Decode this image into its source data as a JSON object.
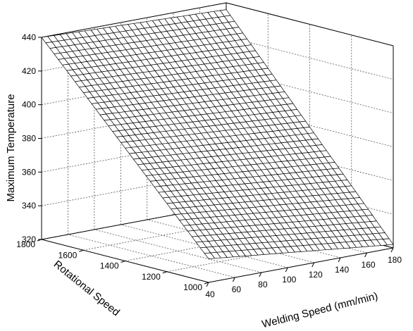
{
  "chart_data": {
    "type": "surface",
    "title": "",
    "xlabel": "Welding Speed (mm/min)",
    "ylabel": "Rotational Speed",
    "zlabel": "Maximum Temperature",
    "xlim": [
      40,
      180
    ],
    "ylim": [
      1000,
      1800
    ],
    "zlim": [
      320,
      440
    ],
    "x_ticks": [
      "40",
      "60",
      "80",
      "100",
      "120",
      "140",
      "160",
      "180"
    ],
    "y_ticks": [
      "1000",
      "1200",
      "1400",
      "1600",
      "1800"
    ],
    "z_ticks": [
      "320",
      "340",
      "360",
      "380",
      "400",
      "420",
      "440"
    ],
    "grid": true,
    "mesh_size": [
      30,
      40
    ],
    "corners": [
      {
        "welding_speed": 40,
        "rotational_speed": 1000,
        "max_temperature": 334
      },
      {
        "welding_speed": 180,
        "rotational_speed": 1000,
        "max_temperature": 322
      },
      {
        "welding_speed": 40,
        "rotational_speed": 1800,
        "max_temperature": 440
      },
      {
        "welding_speed": 180,
        "rotational_speed": 1800,
        "max_temperature": 436
      }
    ],
    "colors": {
      "surface_fill": "#ffffff",
      "mesh": "#000000",
      "grid": "#555555"
    }
  }
}
